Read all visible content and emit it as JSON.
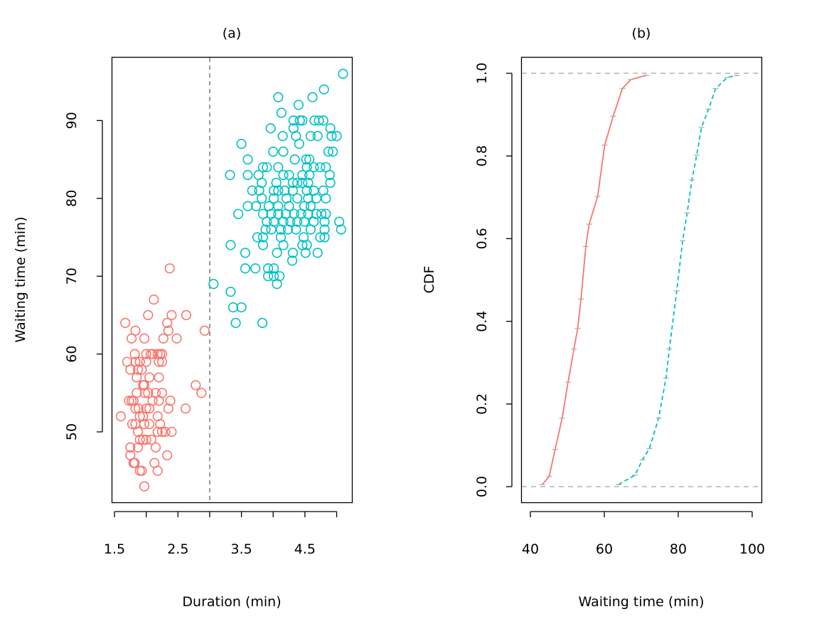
{
  "chart_data": [
    {
      "type": "scatter",
      "title": "(a)",
      "xlabel": "Duration (min)",
      "ylabel": "Waiting time (min)",
      "xlim": [
        1.5,
        5.1
      ],
      "ylim": [
        43,
        96
      ],
      "x_ticks": [
        1.5,
        2,
        2.5,
        3,
        3.5,
        4,
        4.5,
        5
      ],
      "x_tick_labels": [
        "1.5",
        "",
        "2.5",
        "",
        "3.5",
        "",
        "4.5",
        ""
      ],
      "y_ticks": [
        "50",
        "60",
        "70",
        "80",
        "90"
      ],
      "grid": false,
      "vline": {
        "x": 3,
        "style": "dashed",
        "color": "#7f7f7f"
      },
      "series": [
        {
          "color": "#F8766D",
          "points": [
            [
              2.37,
              71
            ],
            [
              2.12,
              67
            ],
            [
              1.67,
              64
            ],
            [
              2.03,
              65
            ],
            [
              2.4,
              65
            ],
            [
              2.63,
              65
            ],
            [
              2.33,
              64
            ],
            [
              1.77,
              62
            ],
            [
              1.97,
              62
            ],
            [
              2.35,
              63
            ],
            [
              2.48,
              62
            ],
            [
              2.92,
              63
            ],
            [
              1.83,
              63
            ],
            [
              2.27,
              62
            ],
            [
              1.7,
              59
            ],
            [
              1.75,
              58
            ],
            [
              1.82,
              60
            ],
            [
              1.83,
              59
            ],
            [
              1.87,
              58
            ],
            [
              1.93,
              58
            ],
            [
              2.0,
              59
            ],
            [
              2.0,
              60
            ],
            [
              2.07,
              60
            ],
            [
              2.1,
              60
            ],
            [
              2.18,
              60
            ],
            [
              2.22,
              60
            ],
            [
              2.25,
              60
            ],
            [
              2.2,
              59
            ],
            [
              2.25,
              59
            ],
            [
              1.9,
              59
            ],
            [
              1.85,
              57
            ],
            [
              2.05,
              57
            ],
            [
              2.2,
              57
            ],
            [
              1.95,
              56
            ],
            [
              1.98,
              55
            ],
            [
              1.97,
              56
            ],
            [
              2.03,
              55
            ],
            [
              2.15,
              55
            ],
            [
              2.25,
              55
            ],
            [
              1.85,
              55
            ],
            [
              2.78,
              56
            ],
            [
              2.87,
              55
            ],
            [
              1.73,
              54
            ],
            [
              1.77,
              54
            ],
            [
              1.8,
              54
            ],
            [
              2.1,
              54
            ],
            [
              1.83,
              53
            ],
            [
              1.88,
              53
            ],
            [
              2.0,
              53
            ],
            [
              2.05,
              53
            ],
            [
              1.6,
              52
            ],
            [
              1.78,
              51
            ],
            [
              1.83,
              51
            ],
            [
              1.9,
              52
            ],
            [
              1.95,
              52
            ],
            [
              1.97,
              51
            ],
            [
              2.05,
              51
            ],
            [
              2.18,
              52
            ],
            [
              2.2,
              54
            ],
            [
              2.35,
              53
            ],
            [
              2.38,
              54
            ],
            [
              2.62,
              53
            ],
            [
              1.87,
              50
            ],
            [
              1.9,
              49
            ],
            [
              1.95,
              49
            ],
            [
              2.0,
              49
            ],
            [
              2.08,
              49
            ],
            [
              2.22,
              51
            ],
            [
              2.25,
              50
            ],
            [
              2.3,
              50
            ],
            [
              2.4,
              50
            ],
            [
              2.15,
              48
            ],
            [
              2.18,
              50
            ],
            [
              1.87,
              48
            ],
            [
              1.75,
              48
            ],
            [
              1.75,
              47
            ],
            [
              1.8,
              46
            ],
            [
              1.82,
              46
            ],
            [
              1.9,
              45
            ],
            [
              1.93,
              45
            ],
            [
              2.13,
              46
            ],
            [
              2.18,
              45
            ],
            [
              2.33,
              47
            ],
            [
              1.97,
              43
            ]
          ]
        },
        {
          "color": "#00BFC4",
          "points": [
            [
              5.1,
              96
            ],
            [
              4.8,
              94
            ],
            [
              4.62,
              93
            ],
            [
              4.08,
              93
            ],
            [
              4.4,
              92
            ],
            [
              4.13,
              91
            ],
            [
              4.32,
              90
            ],
            [
              4.42,
              90
            ],
            [
              4.46,
              90
            ],
            [
              4.65,
              90
            ],
            [
              4.72,
              90
            ],
            [
              4.79,
              90
            ],
            [
              4.9,
              89
            ],
            [
              4.32,
              89
            ],
            [
              3.96,
              89
            ],
            [
              4.15,
              88
            ],
            [
              4.36,
              88
            ],
            [
              4.59,
              88
            ],
            [
              4.7,
              88
            ],
            [
              4.92,
              88
            ],
            [
              5.0,
              88
            ],
            [
              4.41,
              87
            ],
            [
              3.5,
              87
            ],
            [
              4.87,
              86
            ],
            [
              4.94,
              86
            ],
            [
              4.0,
              86
            ],
            [
              4.16,
              86
            ],
            [
              3.6,
              85
            ],
            [
              4.34,
              85
            ],
            [
              4.52,
              85
            ],
            [
              4.57,
              85
            ],
            [
              3.84,
              84
            ],
            [
              3.9,
              84
            ],
            [
              4.08,
              84
            ],
            [
              4.53,
              84
            ],
            [
              4.64,
              84
            ],
            [
              4.74,
              84
            ],
            [
              4.83,
              84
            ],
            [
              3.32,
              83
            ],
            [
              3.6,
              83
            ],
            [
              3.77,
              83
            ],
            [
              4.16,
              83
            ],
            [
              4.25,
              83
            ],
            [
              4.46,
              83
            ],
            [
              4.57,
              83
            ],
            [
              4.89,
              83
            ],
            [
              3.82,
              82
            ],
            [
              4.05,
              82
            ],
            [
              4.31,
              82
            ],
            [
              4.38,
              82
            ],
            [
              4.46,
              82
            ],
            [
              4.55,
              82
            ],
            [
              4.9,
              82
            ],
            [
              3.67,
              81
            ],
            [
              3.78,
              81
            ],
            [
              4.01,
              81
            ],
            [
              4.08,
              81
            ],
            [
              4.18,
              81
            ],
            [
              4.31,
              81
            ],
            [
              4.53,
              81
            ],
            [
              4.64,
              81
            ],
            [
              4.79,
              81
            ],
            [
              3.82,
              80
            ],
            [
              4.01,
              80
            ],
            [
              4.21,
              80
            ],
            [
              4.38,
              80
            ],
            [
              4.55,
              80
            ],
            [
              4.68,
              80
            ],
            [
              4.83,
              80
            ],
            [
              3.6,
              79
            ],
            [
              3.73,
              79
            ],
            [
              3.93,
              79
            ],
            [
              4.08,
              79
            ],
            [
              4.25,
              79
            ],
            [
              4.49,
              79
            ],
            [
              4.59,
              79
            ],
            [
              3.45,
              78
            ],
            [
              3.84,
              78
            ],
            [
              3.97,
              78
            ],
            [
              4.08,
              78
            ],
            [
              4.2,
              78
            ],
            [
              4.33,
              78
            ],
            [
              4.44,
              78
            ],
            [
              4.55,
              78
            ],
            [
              4.68,
              78
            ],
            [
              4.76,
              78
            ],
            [
              4.83,
              78
            ],
            [
              3.9,
              77
            ],
            [
              4.01,
              77
            ],
            [
              4.16,
              77
            ],
            [
              4.27,
              77
            ],
            [
              4.38,
              77
            ],
            [
              4.49,
              77
            ],
            [
              4.64,
              77
            ],
            [
              4.81,
              77
            ],
            [
              5.04,
              77
            ],
            [
              3.88,
              76
            ],
            [
              3.97,
              76
            ],
            [
              4.12,
              76
            ],
            [
              4.23,
              76
            ],
            [
              4.36,
              76
            ],
            [
              4.59,
              76
            ],
            [
              4.81,
              76
            ],
            [
              5.07,
              76
            ],
            [
              3.75,
              75
            ],
            [
              3.84,
              75
            ],
            [
              4.12,
              75
            ],
            [
              4.48,
              75
            ],
            [
              4.74,
              75
            ],
            [
              4.81,
              75
            ],
            [
              3.33,
              74
            ],
            [
              3.84,
              74
            ],
            [
              4.16,
              74
            ],
            [
              4.46,
              74
            ],
            [
              4.53,
              74
            ],
            [
              3.56,
              73
            ],
            [
              4.06,
              73
            ],
            [
              4.31,
              73
            ],
            [
              4.51,
              73
            ],
            [
              4.7,
              73
            ],
            [
              4.3,
              72
            ],
            [
              3.56,
              71
            ],
            [
              3.72,
              71
            ],
            [
              3.92,
              71
            ],
            [
              4.01,
              71
            ],
            [
              3.92,
              70
            ],
            [
              4.01,
              70
            ],
            [
              4.1,
              70
            ],
            [
              4.06,
              69
            ],
            [
              3.06,
              69
            ],
            [
              3.33,
              68
            ],
            [
              3.37,
              66
            ],
            [
              3.5,
              66
            ],
            [
              3.41,
              64
            ],
            [
              3.83,
              64
            ]
          ]
        }
      ]
    },
    {
      "type": "line",
      "title": "(b)",
      "xlabel": "Waiting time (min)",
      "ylabel": "CDF",
      "xlim": [
        38,
        102
      ],
      "ylim": [
        0,
        1
      ],
      "x_ticks": [
        "40",
        "60",
        "80",
        "100"
      ],
      "y_ticks": [
        "0.0",
        "0.2",
        "0.4",
        "0.6",
        "0.8",
        "1.0"
      ],
      "grid": false,
      "hlines": [
        {
          "y": 0,
          "style": "dashed",
          "color": "#b3b3b3"
        },
        {
          "y": 1,
          "style": "dashed",
          "color": "#b3b3b3"
        }
      ],
      "series": [
        {
          "color": "#F8766D",
          "style": "solid",
          "x": [
            43.2,
            45.1,
            46.7,
            48.6,
            50.2,
            51.8,
            52.8,
            53.7,
            55.0,
            55.9,
            58.2,
            60.1,
            62.4,
            64.9,
            67.2,
            71.4
          ],
          "y": [
            0.005,
            0.025,
            0.09,
            0.166,
            0.253,
            0.333,
            0.383,
            0.454,
            0.581,
            0.635,
            0.702,
            0.826,
            0.896,
            0.963,
            0.985,
            0.995
          ]
        },
        {
          "color": "#00BFC4",
          "style": "dashed",
          "x": [
            63.8,
            68.3,
            70.3,
            72.2,
            74.7,
            76.7,
            77.6,
            79.6,
            81.2,
            82.4,
            83.7,
            85.0,
            86.3,
            88.2,
            90.1,
            93.3,
            95.9
          ],
          "y": [
            0.005,
            0.028,
            0.065,
            0.092,
            0.166,
            0.263,
            0.333,
            0.474,
            0.595,
            0.662,
            0.742,
            0.802,
            0.869,
            0.913,
            0.963,
            0.99,
            0.995
          ]
        }
      ]
    }
  ]
}
